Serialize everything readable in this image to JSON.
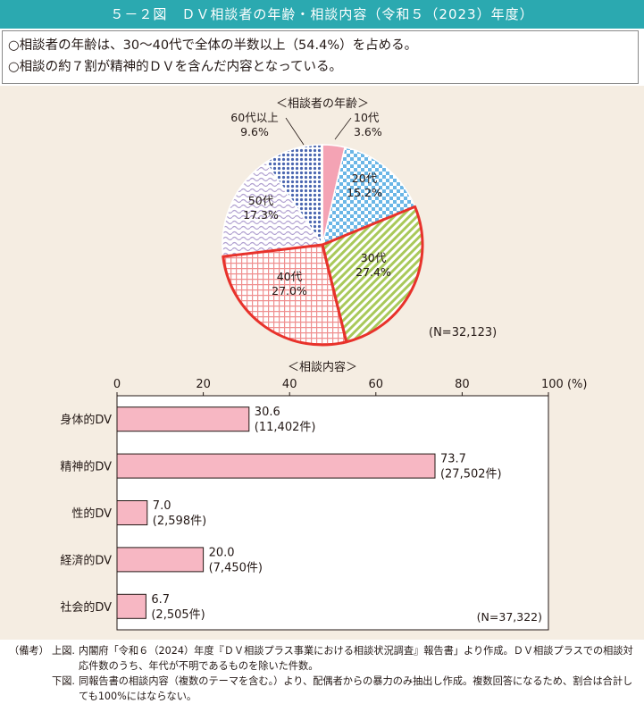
{
  "title": "５－２図　ＤＶ相談者の年齢・相談内容（令和５（2023）年度）",
  "summary": [
    "○相談者の年齢は、30～40代で全体の半数以上（54.4%）を占める。",
    "○相談の約７割が精神的ＤＶを含んだ内容となっている。"
  ],
  "colors": {
    "title_bg": "#2ba9b0",
    "area_bg": "#f5ede2",
    "highlight": "#e8322b",
    "bar_fill": "#f7b7c3",
    "bar_stroke": "#231815"
  },
  "chart_data": [
    {
      "type": "pie",
      "title": "＜相談者の年齢＞",
      "note": "(N=32,123)",
      "slices": [
        {
          "label": "10代",
          "value": 3.6,
          "value_text": "3.6%",
          "color": "#f4a3b4",
          "pattern": "solid",
          "highlight": false
        },
        {
          "label": "20代",
          "value": 15.2,
          "value_text": "15.2%",
          "color": "#6bb6e6",
          "pattern": "checker",
          "highlight": false
        },
        {
          "label": "30代",
          "value": 27.4,
          "value_text": "27.4%",
          "color": "#a9c95a",
          "pattern": "diagonal",
          "highlight": true
        },
        {
          "label": "40代",
          "value": 27.0,
          "value_text": "27.0%",
          "color": "#ef8f8f",
          "pattern": "grid",
          "highlight": true
        },
        {
          "label": "50代",
          "value": 17.3,
          "value_text": "17.3%",
          "color": "#b0a0d0",
          "pattern": "wave",
          "highlight": false
        },
        {
          "label": "60代以上",
          "value": 9.6,
          "value_text": "9.6%",
          "color": "#4a66b0",
          "pattern": "dots",
          "highlight": false
        }
      ]
    },
    {
      "type": "bar",
      "orientation": "horizontal",
      "title": "＜相談内容＞",
      "note": "(N=37,322)",
      "unit_label": "100 (%)",
      "xlim": [
        0,
        100
      ],
      "ticks": [
        0,
        20,
        40,
        60,
        80,
        100
      ],
      "categories": [
        "身体的DV",
        "精神的DV",
        "性的DV",
        "経済的DV",
        "社会的DV"
      ],
      "values": [
        30.6,
        73.7,
        7.0,
        20.0,
        6.7
      ],
      "value_labels": [
        "30.6",
        "73.7",
        "7.0",
        "20.0",
        "6.7"
      ],
      "count_labels": [
        "(11,402件)",
        "(27,502件)",
        "(2,598件)",
        "(7,450件)",
        "(2,505件)"
      ]
    }
  ],
  "notes": [
    {
      "head": "（備考）",
      "sub": "上図.",
      "text": "内閣府「令和６（2024）年度『ＤＶ相談プラス事業における相談状況調査』報告書」より作成。ＤＶ相談プラスでの相談対応件数のうち、年代が不明であるものを除いた件数。"
    },
    {
      "head": "",
      "sub": "下図.",
      "text": "同報告書の相談内容（複数のテーマを含む。）より、配偶者からの暴力のみ抽出し作成。複数回答になるため、割合は合計しても100%にはならない。"
    }
  ]
}
